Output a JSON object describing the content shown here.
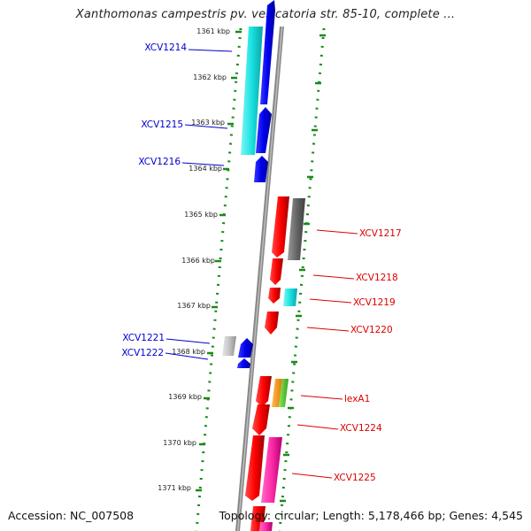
{
  "title": "Xanthomonas campestris pv. vesicatoria str. 85-10, complete ...",
  "footer": {
    "accession": "Accession: NC_007508",
    "summary": "Topology: circular; Length: 5,178,466 bp; Genes: 4,545"
  },
  "colors": {
    "backbone": "#888888",
    "ticks": "#1a8a1a",
    "forward_label": "#0000cc",
    "reverse_label": "#dd0000"
  },
  "kbp_labels": [
    "1361 kbp",
    "1362 kbp",
    "1363 kbp",
    "1364 kbp",
    "1365 kbp",
    "1366 kbp",
    "1367 kbp",
    "1368 kbp",
    "1369 kbp",
    "1370 kbp",
    "1371 kbp"
  ],
  "genes_labeled": [
    {
      "name": "XCV1214",
      "strand": "forward"
    },
    {
      "name": "XCV1215",
      "strand": "forward"
    },
    {
      "name": "XCV1216",
      "strand": "forward"
    },
    {
      "name": "XCV1217",
      "strand": "reverse"
    },
    {
      "name": "XCV1218",
      "strand": "reverse"
    },
    {
      "name": "XCV1219",
      "strand": "reverse"
    },
    {
      "name": "XCV1220",
      "strand": "reverse"
    },
    {
      "name": "XCV1221",
      "strand": "forward"
    },
    {
      "name": "XCV1222",
      "strand": "forward"
    },
    {
      "name": "lexA1",
      "strand": "reverse"
    },
    {
      "name": "XCV1224",
      "strand": "reverse"
    },
    {
      "name": "XCV1225",
      "strand": "reverse"
    }
  ]
}
